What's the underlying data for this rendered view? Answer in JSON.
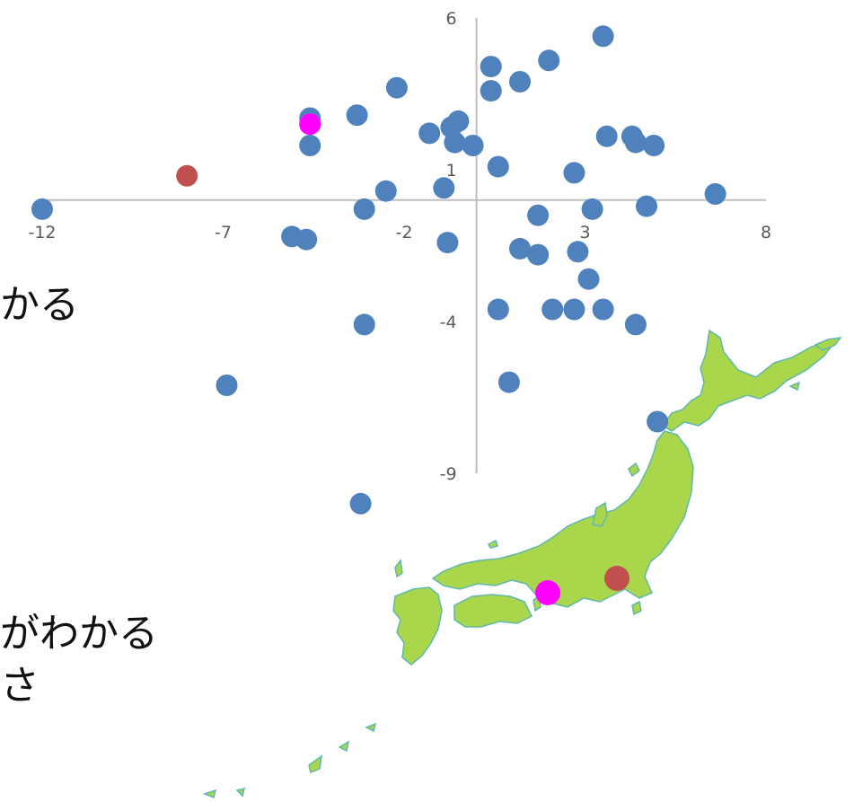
{
  "colors": {
    "axis": "#bfbfbf",
    "tick_text": "#595959",
    "point_default": "#4f81bd",
    "point_highlight_red": "#c0504d",
    "point_highlight_magenta": "#ff00ff",
    "map_land": "#a9d64a",
    "map_outline": "#5fb7b0",
    "text": "#111111"
  },
  "slide_text": {
    "line1": "かる",
    "line2": "がわかる",
    "line3": "さ"
  },
  "chart_data": {
    "type": "scatter",
    "title": "",
    "xlabel": "",
    "ylabel": "",
    "xlim": [
      -12,
      8
    ],
    "ylim": [
      -9,
      6
    ],
    "x_ticks": [
      "-12",
      "-7",
      "-2",
      "3",
      "8"
    ],
    "y_ticks": [
      "6",
      "1",
      "-4",
      "-9"
    ],
    "grid": false,
    "legend": "none",
    "series": [
      {
        "color": "#4f81bd",
        "points": [
          [
            3.5,
            5.4
          ],
          [
            0.4,
            4.4
          ],
          [
            2.0,
            4.6
          ],
          [
            1.2,
            3.9
          ],
          [
            0.4,
            3.6
          ],
          [
            -2.2,
            3.7
          ],
          [
            -3.3,
            2.8
          ],
          [
            -4.6,
            2.7
          ],
          [
            -0.5,
            2.6
          ],
          [
            -0.7,
            2.4
          ],
          [
            -1.3,
            2.2
          ],
          [
            -0.6,
            1.9
          ],
          [
            -0.1,
            1.8
          ],
          [
            -4.6,
            1.8
          ],
          [
            3.6,
            2.1
          ],
          [
            4.3,
            2.1
          ],
          [
            4.4,
            1.9
          ],
          [
            4.9,
            1.8
          ],
          [
            0.6,
            1.1
          ],
          [
            2.7,
            0.9
          ],
          [
            -2.5,
            0.3
          ],
          [
            -0.9,
            0.4
          ],
          [
            6.6,
            0.2
          ],
          [
            4.7,
            -0.2
          ],
          [
            3.2,
            -0.3
          ],
          [
            -12.0,
            -0.3
          ],
          [
            -3.1,
            -0.3
          ],
          [
            1.7,
            -0.5
          ],
          [
            -5.1,
            -1.2
          ],
          [
            -4.7,
            -1.3
          ],
          [
            -0.8,
            -1.4
          ],
          [
            1.2,
            -1.6
          ],
          [
            1.7,
            -1.8
          ],
          [
            2.8,
            -1.7
          ],
          [
            3.1,
            -2.6
          ],
          [
            0.6,
            -3.6
          ],
          [
            2.1,
            -3.6
          ],
          [
            2.7,
            -3.6
          ],
          [
            3.5,
            -3.6
          ],
          [
            4.4,
            -4.1
          ],
          [
            -3.1,
            -4.1
          ],
          [
            -6.9,
            -6.1
          ],
          [
            0.9,
            -6.0
          ],
          [
            5.0,
            -7.3
          ],
          [
            -3.2,
            -10.0
          ]
        ]
      },
      {
        "color": "#c0504d",
        "points": [
          [
            -8.0,
            0.8
          ]
        ]
      },
      {
        "color": "#ff00ff",
        "points": [
          [
            -4.6,
            2.5
          ]
        ]
      }
    ]
  },
  "map": {
    "markers": [
      {
        "color": "#c0504d"
      },
      {
        "color": "#ff00ff"
      }
    ]
  }
}
